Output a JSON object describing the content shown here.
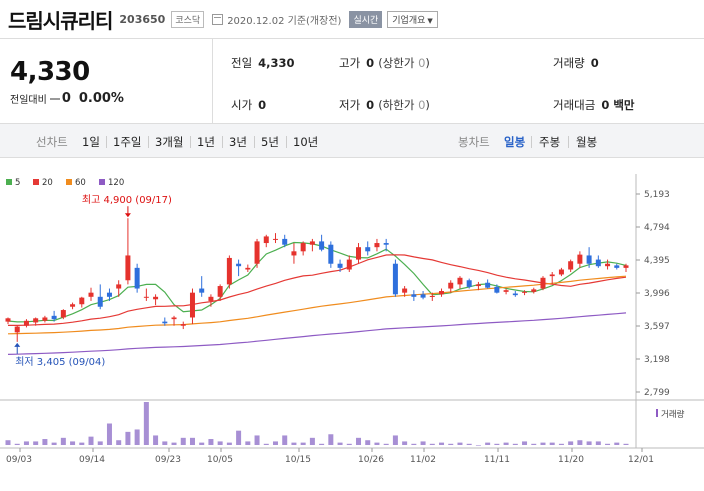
{
  "header": {
    "stock_name": "드림시큐리티",
    "stock_code": "203650",
    "market": "코스닥",
    "date_text": "2020.12.02  기준(개장전)",
    "realtime_label": "실시간",
    "company_info_label": "기업개요"
  },
  "summary": {
    "current_price": "4,330",
    "change_label": "전일대비",
    "change_value": "0",
    "change_pct": "0.00%",
    "prev_close_label": "전일",
    "prev_close": "4,330",
    "high_label": "고가",
    "high": "0",
    "upper_limit_label": "(상한가",
    "upper_limit": "0",
    "upper_close": ")",
    "volume_label": "거래량",
    "volume": "0",
    "open_label": "시가",
    "open": "0",
    "low_label": "저가",
    "low": "0",
    "lower_limit_label": "(하한가",
    "lower_limit": "0",
    "lower_close": ")",
    "trade_value_label": "거래대금",
    "trade_value": "0 백만"
  },
  "chart_tabs": {
    "line_label": "선차트",
    "line_items": [
      "1일",
      "1주일",
      "3개월",
      "1년",
      "3년",
      "5년",
      "10년"
    ],
    "candle_label": "봉차트",
    "candle_items": [
      "일봉",
      "주봉",
      "월봉"
    ],
    "active": "일봉"
  },
  "chart_data": {
    "type": "candlestick",
    "legend": [
      {
        "name": "5",
        "color": "#4caf50"
      },
      {
        "name": "20",
        "color": "#e53935"
      },
      {
        "name": "60",
        "color": "#f08c1e"
      },
      {
        "name": "120",
        "color": "#8e5bc4"
      }
    ],
    "price_ticks": [
      "5,193",
      "4,794",
      "4,395",
      "3,996",
      "3,597",
      "3,198",
      "2,799"
    ],
    "ylim": [
      2799,
      5193
    ],
    "x_labels": [
      "09/03",
      "09/14",
      "09/23",
      "10/05",
      "10/15",
      "10/26",
      "11/02",
      "11/11",
      "11/20",
      "12/01"
    ],
    "high_annotation": "최고 4,900 (09/17)",
    "low_annotation": "최저 3,405 (09/04)",
    "volume_label": "거래량",
    "candles": [
      [
        3650,
        3700,
        3620,
        3690
      ],
      [
        3520,
        3600,
        3405,
        3590
      ],
      [
        3600,
        3680,
        3580,
        3660
      ],
      [
        3640,
        3700,
        3600,
        3690
      ],
      [
        3660,
        3720,
        3640,
        3700
      ],
      [
        3720,
        3780,
        3650,
        3680
      ],
      [
        3700,
        3800,
        3680,
        3790
      ],
      [
        3830,
        3880,
        3800,
        3860
      ],
      [
        3860,
        3950,
        3820,
        3940
      ],
      [
        3950,
        4060,
        3900,
        4000
      ],
      [
        3950,
        4100,
        3800,
        3830
      ],
      [
        4000,
        4050,
        3900,
        3950
      ],
      [
        4050,
        4150,
        3950,
        4100
      ],
      [
        4150,
        4900,
        4100,
        4450
      ],
      [
        4300,
        4350,
        4000,
        4050
      ],
      [
        3950,
        4050,
        3900,
        3950
      ],
      [
        3920,
        3980,
        3850,
        3950
      ],
      [
        3650,
        3700,
        3600,
        3630
      ],
      [
        3680,
        3720,
        3600,
        3700
      ],
      [
        3600,
        3650,
        3560,
        3620
      ],
      [
        3700,
        4050,
        3620,
        4000
      ],
      [
        4050,
        4200,
        3950,
        4000
      ],
      [
        3900,
        3980,
        3830,
        3950
      ],
      [
        3950,
        4100,
        3900,
        4080
      ],
      [
        4100,
        4450,
        4050,
        4420
      ],
      [
        4350,
        4400,
        4200,
        4320
      ],
      [
        4280,
        4340,
        4250,
        4300
      ],
      [
        4350,
        4650,
        4300,
        4620
      ],
      [
        4600,
        4700,
        4550,
        4680
      ],
      [
        4640,
        4720,
        4600,
        4650
      ],
      [
        4650,
        4700,
        4550,
        4580
      ],
      [
        4450,
        4600,
        4350,
        4500
      ],
      [
        4500,
        4620,
        4450,
        4600
      ],
      [
        4580,
        4650,
        4500,
        4620
      ],
      [
        4620,
        4700,
        4500,
        4520
      ],
      [
        4580,
        4620,
        4300,
        4350
      ],
      [
        4350,
        4400,
        4250,
        4300
      ],
      [
        4280,
        4450,
        4250,
        4400
      ],
      [
        4400,
        4600,
        4350,
        4550
      ],
      [
        4550,
        4620,
        4450,
        4500
      ],
      [
        4550,
        4650,
        4500,
        4600
      ],
      [
        4600,
        4650,
        4500,
        4580
      ],
      [
        4350,
        4400,
        3950,
        3980
      ],
      [
        4000,
        4080,
        3950,
        4050
      ],
      [
        3980,
        4030,
        3900,
        3950
      ],
      [
        3980,
        4020,
        3920,
        3940
      ],
      [
        3950,
        4000,
        3900,
        3960
      ],
      [
        3980,
        4050,
        3950,
        4020
      ],
      [
        4050,
        4150,
        4000,
        4120
      ],
      [
        4100,
        4200,
        4050,
        4180
      ],
      [
        4150,
        4170,
        4050,
        4070
      ],
      [
        4080,
        4130,
        4030,
        4100
      ],
      [
        4120,
        4160,
        4050,
        4060
      ],
      [
        4070,
        4100,
        3990,
        4000
      ],
      [
        4010,
        4050,
        3980,
        4030
      ],
      [
        3990,
        4020,
        3950,
        3970
      ],
      [
        4000,
        4030,
        3970,
        4010
      ],
      [
        4010,
        4060,
        3990,
        4040
      ],
      [
        4050,
        4200,
        4030,
        4180
      ],
      [
        4200,
        4250,
        4100,
        4220
      ],
      [
        4220,
        4300,
        4200,
        4280
      ],
      [
        4280,
        4400,
        4250,
        4380
      ],
      [
        4350,
        4500,
        4300,
        4460
      ],
      [
        4450,
        4550,
        4300,
        4350
      ],
      [
        4400,
        4450,
        4300,
        4320
      ],
      [
        4320,
        4400,
        4280,
        4350
      ],
      [
        4330,
        4350,
        4280,
        4300
      ],
      [
        4300,
        4350,
        4250,
        4330
      ]
    ],
    "volumes": [
      4,
      1,
      3,
      3,
      5,
      2,
      6,
      3,
      2,
      7,
      3,
      18,
      4,
      11,
      13,
      36,
      8,
      3,
      2,
      6,
      6,
      2,
      5,
      3,
      2,
      12,
      3,
      8,
      1,
      3,
      8,
      2,
      2,
      6,
      1,
      9,
      2,
      1,
      6,
      4,
      2,
      1,
      8,
      3,
      1,
      3,
      1,
      2,
      1,
      2,
      1,
      0,
      2,
      1,
      2,
      1,
      3,
      1,
      2,
      2,
      1,
      3,
      4,
      3,
      3,
      1,
      2,
      1
    ]
  }
}
